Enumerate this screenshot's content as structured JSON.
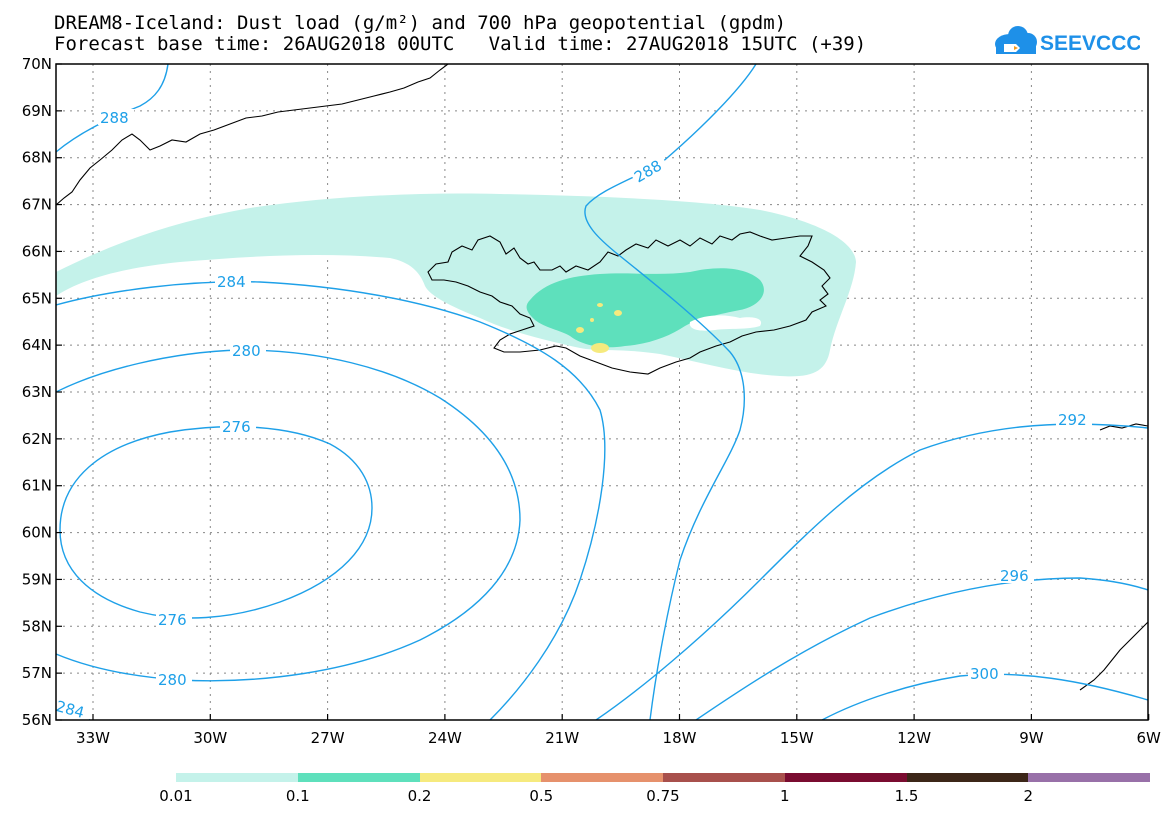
{
  "header": {
    "title_line1": "DREAM8-Iceland: Dust load (g/m²) and 700 hPa geopotential (gpdm)",
    "title_line2": "Forecast base time: 26AUG2018 00UTC   Valid time: 27AUG2018 15UTC (+39)"
  },
  "logo": {
    "text": "SEEVCCC",
    "color": "#1e90e8"
  },
  "axes": {
    "lat_labels": [
      "70N",
      "69N",
      "68N",
      "67N",
      "66N",
      "65N",
      "64N",
      "63N",
      "62N",
      "61N",
      "60N",
      "59N",
      "58N",
      "57N",
      "56N"
    ],
    "lon_labels": [
      "33W",
      "30W",
      "27W",
      "24W",
      "21W",
      "18W",
      "15W",
      "12W",
      "9W",
      "6W"
    ]
  },
  "contours": {
    "color": "#1ea0e8",
    "labels": [
      "288",
      "288",
      "284",
      "280",
      "276",
      "276",
      "280",
      "284",
      "292",
      "296",
      "300"
    ]
  },
  "colorbar": {
    "colors": [
      "#c4f2ea",
      "#5ee0bc",
      "#f6ea7e",
      "#e6916c",
      "#a8504c",
      "#7a0c30",
      "#3c2618",
      "#9870a8"
    ],
    "ticks": [
      "0.01",
      "0.1",
      "0.2",
      "0.5",
      "0.75",
      "1",
      "1.5",
      "2"
    ]
  },
  "map_colors": {
    "land": "#000000",
    "frame": "#000000",
    "grid": "#888888"
  }
}
